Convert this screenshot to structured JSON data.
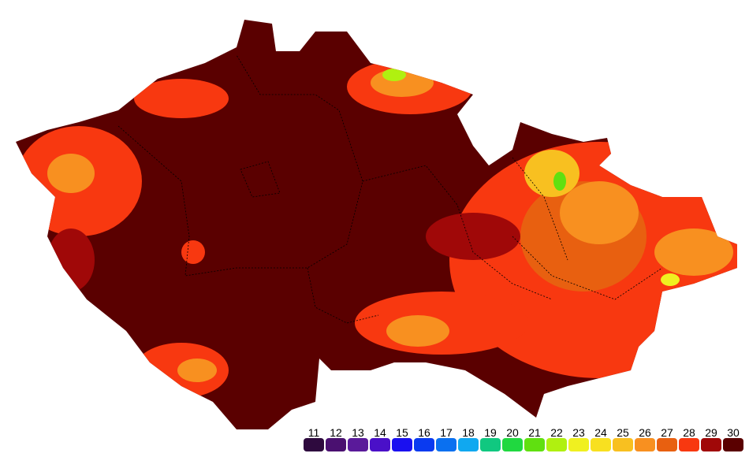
{
  "legend": {
    "items": [
      {
        "label": 11,
        "color": "#2e0a3e"
      },
      {
        "label": 12,
        "color": "#4a1070"
      },
      {
        "label": 13,
        "color": "#5a1a9a"
      },
      {
        "label": 14,
        "color": "#4a10c8"
      },
      {
        "label": 15,
        "color": "#1a10f0"
      },
      {
        "label": 16,
        "color": "#0a3af0"
      },
      {
        "label": 17,
        "color": "#0a70f0"
      },
      {
        "label": 18,
        "color": "#10a8f0"
      },
      {
        "label": 19,
        "color": "#10c880"
      },
      {
        "label": 20,
        "color": "#20d840"
      },
      {
        "label": 21,
        "color": "#60e010"
      },
      {
        "label": 22,
        "color": "#b0f010"
      },
      {
        "label": 23,
        "color": "#f0f020"
      },
      {
        "label": 24,
        "color": "#f8e020"
      },
      {
        "label": 25,
        "color": "#f8c020"
      },
      {
        "label": 26,
        "color": "#f89020"
      },
      {
        "label": 27,
        "color": "#e86010"
      },
      {
        "label": 28,
        "color": "#f83810"
      },
      {
        "label": 29,
        "color": "#a00808"
      },
      {
        "label": 30,
        "color": "#5a0000"
      }
    ]
  }
}
